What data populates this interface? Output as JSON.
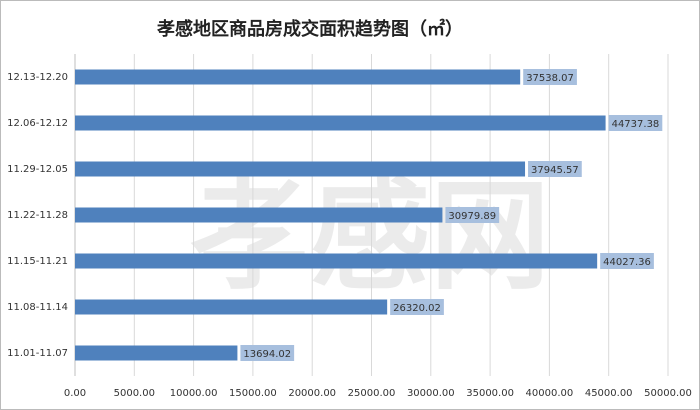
{
  "chart_data": {
    "type": "bar",
    "orientation": "horizontal",
    "title": "孝感地区商品房成交面积趋势图（㎡）",
    "watermark": "孝感网",
    "categories": [
      "11.01-11.07",
      "11.08-11.14",
      "11.15-11.21",
      "11.22-11.28",
      "11.29-12.05",
      "12.06-12.12",
      "12.13-12.20"
    ],
    "values": [
      13694.02,
      26320.02,
      44027.36,
      30979.89,
      37945.57,
      44737.38,
      37538.07
    ],
    "color": "#4f81bd",
    "label_color": "#a7bfde",
    "xlim": [
      0,
      50000
    ],
    "xticks": [
      {
        "value": 0,
        "label": "0.00"
      },
      {
        "value": 5000,
        "label": "5000.00"
      },
      {
        "value": 10000,
        "label": "10000.00"
      },
      {
        "value": 15000,
        "label": "15000.00"
      },
      {
        "value": 20000,
        "label": "20000.00"
      },
      {
        "value": 25000,
        "label": "25000.00"
      },
      {
        "value": 30000,
        "label": "30000.00"
      },
      {
        "value": 35000,
        "label": "35000.00"
      },
      {
        "value": 40000,
        "label": "40000.00"
      },
      {
        "value": 45000,
        "label": "45000.00"
      },
      {
        "value": 50000,
        "label": "50000.00"
      }
    ],
    "grid": true
  }
}
